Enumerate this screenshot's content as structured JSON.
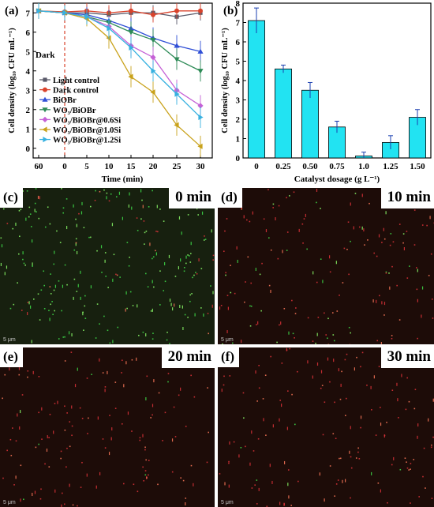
{
  "chart_data": [
    {
      "id": "a",
      "type": "line",
      "panel_label": "(a)",
      "xlabel": "Time (min)",
      "ylabel": "Cell density (log₁₀ CFU mL⁻¹)",
      "x": [
        "60",
        "0",
        "5",
        "10",
        "15",
        "20",
        "25",
        "30"
      ],
      "ylim": [
        -0.5,
        7.5
      ],
      "yticks": [
        "0",
        "1",
        "2",
        "3",
        "4",
        "5",
        "6",
        "7"
      ],
      "annotation": "Dark",
      "series": [
        {
          "name": "Light control",
          "color": "#5a5a6a",
          "marker": "square",
          "values": [
            7.1,
            7.0,
            7.0,
            6.9,
            7.0,
            7.0,
            6.8,
            7.0
          ]
        },
        {
          "name": "Dark control",
          "color": "#d9432c",
          "marker": "circle",
          "values": [
            7.1,
            7.05,
            7.1,
            7.0,
            7.1,
            6.9,
            7.1,
            7.1
          ]
        },
        {
          "name": "BiOBr",
          "color": "#2f4fd6",
          "marker": "triangle-up",
          "values": [
            7.1,
            7.0,
            6.9,
            6.6,
            6.2,
            5.7,
            5.3,
            5.0
          ]
        },
        {
          "name": "WO₃/BiOBr",
          "color": "#2e8b57",
          "marker": "triangle-down",
          "values": [
            7.1,
            7.0,
            6.8,
            6.5,
            6.0,
            5.6,
            4.6,
            4.0
          ]
        },
        {
          "name": "WO₃/BiOBr@0.6Si",
          "color": "#c561d6",
          "marker": "diamond",
          "values": [
            7.1,
            7.0,
            6.8,
            6.3,
            5.3,
            4.7,
            3.0,
            2.2
          ]
        },
        {
          "name": "WO₃/BiOBr@1.0Si",
          "color": "#c9a21b",
          "marker": "triangle-left",
          "values": [
            7.1,
            7.0,
            6.7,
            5.7,
            3.7,
            2.9,
            1.2,
            0.1
          ]
        },
        {
          "name": "WO₃/BiOBr@1.2Si",
          "color": "#37b1e0",
          "marker": "triangle-right",
          "values": [
            7.1,
            7.0,
            6.8,
            6.2,
            5.2,
            4.0,
            2.8,
            1.6
          ]
        }
      ]
    },
    {
      "id": "b",
      "type": "bar",
      "panel_label": "(b)",
      "xlabel": "Catalyst dosage (g L⁻¹)",
      "ylabel": "Cell density (log₁₀ CFU mL⁻¹)",
      "categories": [
        "0",
        "0.25",
        "0.50",
        "0.75",
        "1.0",
        "1.25",
        "1.50"
      ],
      "values": [
        7.1,
        4.6,
        3.5,
        1.6,
        0.1,
        0.8,
        2.1
      ],
      "errors": [
        0.65,
        0.2,
        0.4,
        0.3,
        0.2,
        0.35,
        0.4
      ],
      "ylim": [
        0,
        8
      ],
      "yticks": [
        "0",
        "1",
        "2",
        "3",
        "4",
        "5",
        "6",
        "7",
        "8"
      ],
      "bar_color": "#22e3f2"
    }
  ],
  "micrographs": [
    {
      "label": "(c)",
      "time": "0 min",
      "scale": "5 μm"
    },
    {
      "label": "(d)",
      "time": "10 min",
      "scale": "5 μm"
    },
    {
      "label": "(e)",
      "time": "20 min",
      "scale": "5 μm"
    },
    {
      "label": "(f)",
      "time": "30 min",
      "scale": "5 μm"
    }
  ]
}
